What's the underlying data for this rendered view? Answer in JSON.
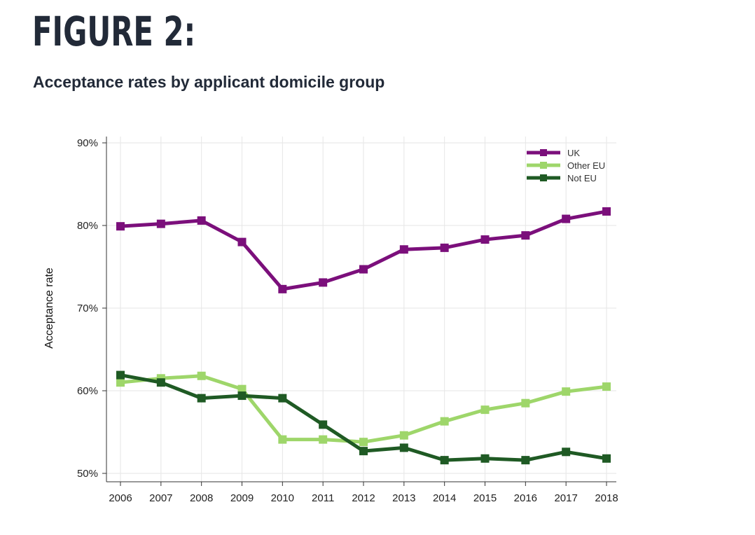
{
  "figure": {
    "heading": "FIGURE 2:",
    "title": "Acceptance rates by applicant domicile group"
  },
  "chart_data": {
    "type": "line",
    "title": "Acceptance rates by applicant domicile group",
    "xlabel": "",
    "ylabel": "Acceptance rate",
    "x": [
      2006,
      2007,
      2008,
      2009,
      2010,
      2011,
      2012,
      2013,
      2014,
      2015,
      2016,
      2017,
      2018
    ],
    "x_tick_labels": [
      "2006",
      "2007",
      "2008",
      "2009",
      "2010",
      "2011",
      "2012",
      "2013",
      "2014",
      "2015",
      "2016",
      "2017",
      "2018"
    ],
    "y_ticks": [
      50,
      60,
      70,
      80,
      90
    ],
    "y_tick_labels": [
      "50%",
      "60%",
      "70%",
      "80%",
      "90%"
    ],
    "ylim": [
      50,
      90
    ],
    "grid": true,
    "legend_position": "top-right",
    "series": [
      {
        "name": "UK",
        "color": "#7b0f7b",
        "values": [
          79.9,
          80.2,
          80.6,
          78.0,
          72.3,
          73.1,
          74.7,
          77.1,
          77.3,
          78.3,
          78.8,
          80.8,
          81.7
        ]
      },
      {
        "name": "Other EU",
        "color": "#9ed66a",
        "values": [
          61.0,
          61.5,
          61.8,
          60.2,
          54.1,
          54.1,
          53.8,
          54.6,
          56.3,
          57.7,
          58.5,
          59.9,
          60.5
        ]
      },
      {
        "name": "Not EU",
        "color": "#1f5a24",
        "values": [
          61.9,
          61.0,
          59.1,
          59.4,
          59.1,
          55.9,
          52.7,
          53.1,
          51.6,
          51.8,
          51.6,
          52.6,
          51.8
        ]
      }
    ]
  }
}
